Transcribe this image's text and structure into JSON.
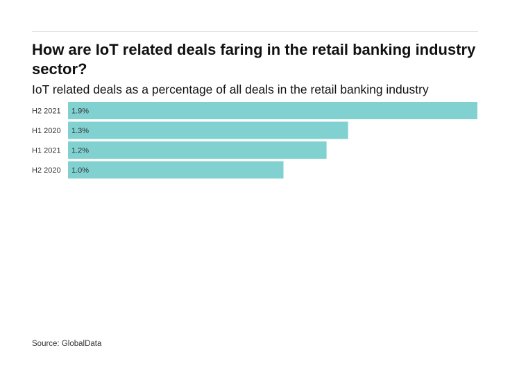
{
  "title": "How are IoT related deals faring in the retail banking industry sector?",
  "subtitle": "IoT related deals as a percentage of all deals in the retail banking industry",
  "source": "Source: GlobalData",
  "colors": {
    "bar": "#81d1d1"
  },
  "chart_data": {
    "type": "bar",
    "orientation": "horizontal",
    "categories": [
      "H2 2021",
      "H1 2020",
      "H1 2021",
      "H2 2020"
    ],
    "values": [
      1.9,
      1.3,
      1.2,
      1.0
    ],
    "value_labels": [
      "1.9%",
      "1.3%",
      "1.2%",
      "1.0%"
    ],
    "title": "How are IoT related deals faring in the retail banking industry sector?",
    "subtitle": "IoT related deals as a percentage of all deals in the retail banking industry",
    "xlim": [
      0,
      1.9
    ],
    "grid": false,
    "legend": "none"
  }
}
